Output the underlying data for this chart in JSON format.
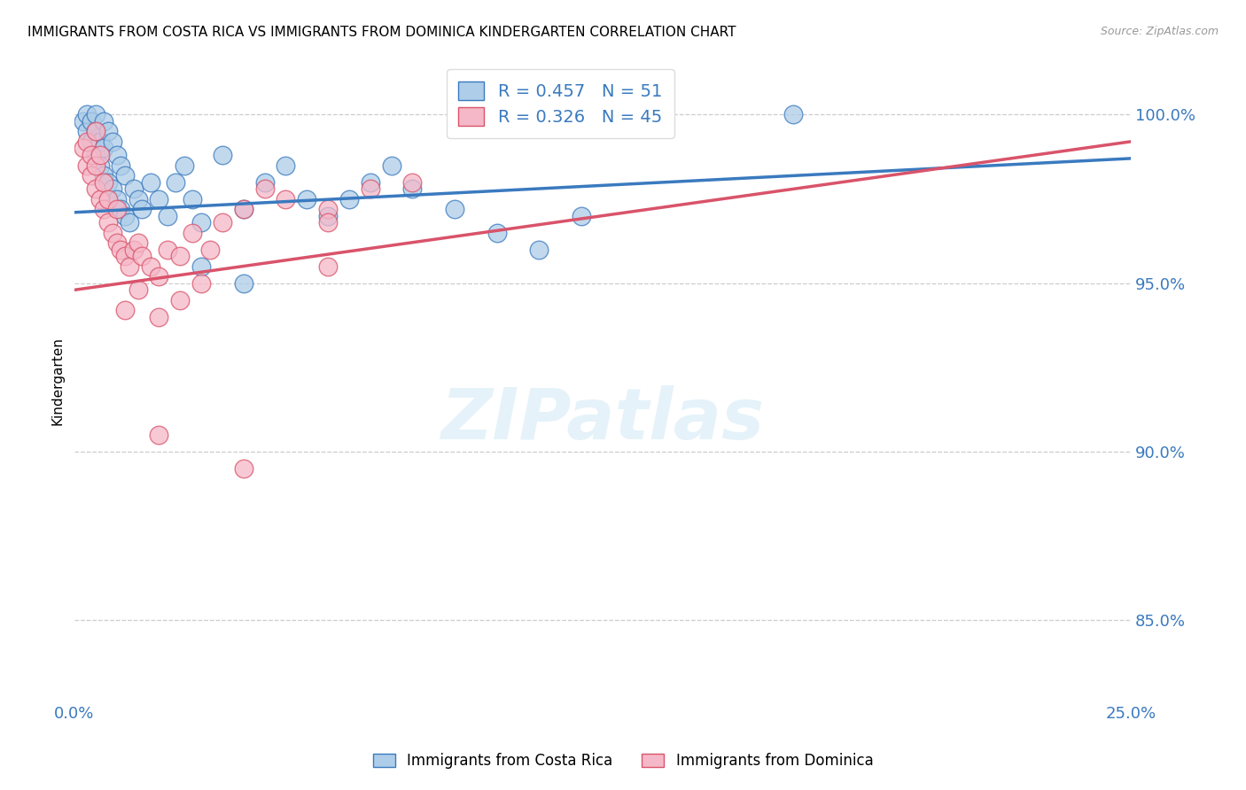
{
  "title": "IMMIGRANTS FROM COSTA RICA VS IMMIGRANTS FROM DOMINICA KINDERGARTEN CORRELATION CHART",
  "source": "Source: ZipAtlas.com",
  "ylabel": "Kindergarten",
  "xlim": [
    0.0,
    0.25
  ],
  "ylim": [
    0.826,
    1.016
  ],
  "yticks": [
    0.85,
    0.9,
    0.95,
    1.0
  ],
  "ytick_labels": [
    "85.0%",
    "90.0%",
    "95.0%",
    "100.0%"
  ],
  "xticks": [
    0.0,
    0.05,
    0.1,
    0.15,
    0.2,
    0.25
  ],
  "blue_color": "#aecde8",
  "pink_color": "#f5b8c8",
  "blue_line_color": "#3a7abf",
  "pink_line_color": "#d9536a",
  "legend_R_blue": "R = 0.457",
  "legend_N_blue": "N = 51",
  "legend_R_pink": "R = 0.326",
  "legend_N_pink": "N = 45",
  "blue_label": "Immigrants from Costa Rica",
  "pink_label": "Immigrants from Dominica",
  "costa_rica_x": [
    0.002,
    0.003,
    0.003,
    0.004,
    0.004,
    0.005,
    0.005,
    0.005,
    0.006,
    0.006,
    0.007,
    0.007,
    0.007,
    0.008,
    0.008,
    0.009,
    0.009,
    0.01,
    0.01,
    0.011,
    0.011,
    0.012,
    0.012,
    0.013,
    0.014,
    0.015,
    0.016,
    0.018,
    0.02,
    0.022,
    0.024,
    0.026,
    0.028,
    0.03,
    0.035,
    0.04,
    0.045,
    0.05,
    0.055,
    0.06,
    0.065,
    0.07,
    0.075,
    0.08,
    0.09,
    0.1,
    0.11,
    0.12,
    0.17,
    0.03,
    0.04
  ],
  "costa_rica_y": [
    0.998,
    0.995,
    1.0,
    0.992,
    0.998,
    0.988,
    0.995,
    1.0,
    0.985,
    0.992,
    0.982,
    0.99,
    0.998,
    0.98,
    0.995,
    0.978,
    0.992,
    0.975,
    0.988,
    0.972,
    0.985,
    0.97,
    0.982,
    0.968,
    0.978,
    0.975,
    0.972,
    0.98,
    0.975,
    0.97,
    0.98,
    0.985,
    0.975,
    0.968,
    0.988,
    0.972,
    0.98,
    0.985,
    0.975,
    0.97,
    0.975,
    0.98,
    0.985,
    0.978,
    0.972,
    0.965,
    0.96,
    0.97,
    1.0,
    0.955,
    0.95
  ],
  "dominica_x": [
    0.002,
    0.003,
    0.003,
    0.004,
    0.004,
    0.005,
    0.005,
    0.005,
    0.006,
    0.006,
    0.007,
    0.007,
    0.008,
    0.008,
    0.009,
    0.01,
    0.01,
    0.011,
    0.012,
    0.013,
    0.014,
    0.015,
    0.016,
    0.018,
    0.02,
    0.022,
    0.025,
    0.028,
    0.032,
    0.035,
    0.04,
    0.045,
    0.05,
    0.06,
    0.06,
    0.07,
    0.08,
    0.03,
    0.025,
    0.02,
    0.015,
    0.012,
    0.06,
    0.04,
    0.02
  ],
  "dominica_y": [
    0.99,
    0.985,
    0.992,
    0.982,
    0.988,
    0.978,
    0.985,
    0.995,
    0.975,
    0.988,
    0.972,
    0.98,
    0.968,
    0.975,
    0.965,
    0.962,
    0.972,
    0.96,
    0.958,
    0.955,
    0.96,
    0.962,
    0.958,
    0.955,
    0.952,
    0.96,
    0.958,
    0.965,
    0.96,
    0.968,
    0.972,
    0.978,
    0.975,
    0.972,
    0.968,
    0.978,
    0.98,
    0.95,
    0.945,
    0.94,
    0.948,
    0.942,
    0.955,
    0.895,
    0.905
  ],
  "reg_blue": [
    0.971,
    0.987
  ],
  "reg_pink": [
    0.948,
    0.992
  ]
}
